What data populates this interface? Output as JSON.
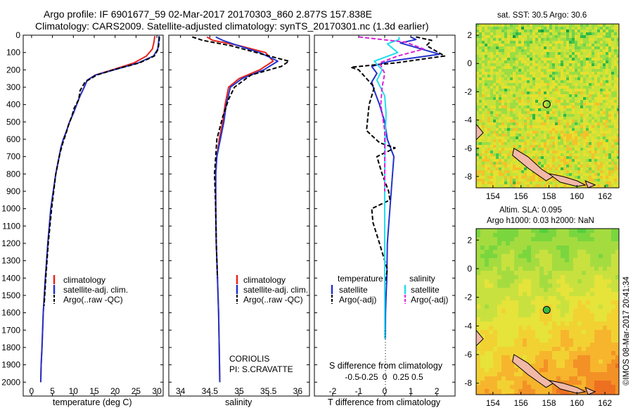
{
  "header": {
    "line1": "Argo profile: IF 6901677_59 02-Mar-2017 20170303_860 2.877S 157.838E",
    "line2": "Climatology: CARS2009. Satellite-adjusted climatology: synTS_20170301.nc (1.3d earlier)"
  },
  "colors": {
    "climatology": "#e8231b",
    "satellite_adj": "#2233cc",
    "argo": "#000000",
    "sal_satellite": "#22ddee",
    "sal_argo": "#dd22dd"
  },
  "legend_profile": {
    "climatology": "climatology",
    "satellite_adj": "satellite-adj. clim.",
    "argo": "Argo(..raw -QC)"
  },
  "legend_diff": {
    "temperature_head": "temperature",
    "salinity_head": "salinity",
    "satellite": "satellite",
    "argo": "Argo(-adj)"
  },
  "annotations": {
    "coriolis": "CORIOLIS",
    "pi": "PI: S.CRAVATTE",
    "sst_title": "sat. SST: 30.5 Argo: 30.6",
    "sla_title1": "Altim. SLA: 0.095",
    "sla_title2": "Argo h1000: 0.03 h2000: NaN",
    "timestamp": "©IMOS 08-Mar-2017 20:41:34"
  },
  "chart_data": [
    {
      "type": "line",
      "name": "temperature-profile",
      "xlabel": "temperature (deg C)",
      "ylabel": "",
      "xlim": [
        -2,
        31.5
      ],
      "ylim": [
        2080,
        0
      ],
      "xticks": [
        0,
        5,
        10,
        15,
        20,
        25,
        30
      ],
      "yticks": [
        0,
        100,
        200,
        300,
        400,
        500,
        600,
        700,
        800,
        900,
        1000,
        1100,
        1200,
        1300,
        1400,
        1500,
        1600,
        1700,
        1800,
        1900,
        2000
      ],
      "series": [
        {
          "name": "climatology",
          "color": "#e8231b",
          "dash": "",
          "x": [
            29.5,
            29.3,
            28.9,
            27.5,
            24.5,
            20.0,
            15.2,
            13.3,
            12.6,
            11.6,
            10.8,
            10.0,
            9.1,
            8.4,
            7.6,
            7.0,
            5.8,
            4.6,
            3.9,
            3.3,
            2.8,
            2.5,
            2.3,
            2.2
          ],
          "y": [
            5,
            40,
            80,
            120,
            160,
            195,
            230,
            260,
            300,
            350,
            400,
            450,
            500,
            550,
            600,
            650,
            800,
            1000,
            1200,
            1400,
            1600,
            1800,
            1900,
            2000
          ]
        },
        {
          "name": "satellite-adj. clim.",
          "color": "#2233cc",
          "dash": "",
          "x": [
            30.5,
            30.4,
            30.2,
            29.2,
            25.5,
            20.5,
            15.3,
            13.3,
            12.6,
            11.6,
            10.8,
            10.0,
            9.1,
            8.4,
            7.6,
            7.0,
            5.8,
            4.6,
            3.9,
            3.3,
            2.8,
            2.5,
            2.3,
            2.2
          ],
          "y": [
            5,
            40,
            80,
            120,
            160,
            195,
            230,
            260,
            300,
            350,
            400,
            450,
            500,
            550,
            600,
            650,
            800,
            1000,
            1200,
            1400,
            1600,
            1800,
            1900,
            2000
          ]
        },
        {
          "name": "Argo(..raw -QC)",
          "color": "#000000",
          "dash": "6,3",
          "x": [
            30.6,
            30.5,
            30.3,
            29.4,
            25.8,
            20.2,
            15.6,
            12.8,
            11.6,
            11.3,
            10.2,
            9.6,
            8.8,
            8.2,
            7.5,
            6.8,
            5.8,
            4.8,
            4.0,
            3.4,
            3.0
          ],
          "y": [
            10,
            40,
            80,
            120,
            160,
            195,
            230,
            270,
            320,
            370,
            420,
            470,
            520,
            570,
            620,
            680,
            800,
            1000,
            1200,
            1400,
            1560
          ]
        }
      ]
    },
    {
      "type": "line",
      "name": "salinity-profile",
      "xlabel": "salinity",
      "xlim": [
        33.8,
        36.2
      ],
      "ylim": [
        2080,
        0
      ],
      "xticks": [
        34,
        34.5,
        35,
        35.5,
        36
      ],
      "series": [
        {
          "name": "climatology",
          "color": "#e8231b",
          "dash": "",
          "x": [
            34.45,
            34.55,
            35.0,
            35.45,
            35.58,
            35.35,
            35.0,
            34.82,
            34.76,
            34.72,
            34.66,
            34.62,
            34.6,
            34.6,
            34.61,
            34.63,
            34.65,
            34.66,
            34.67
          ],
          "y": [
            10,
            30,
            60,
            100,
            150,
            200,
            250,
            300,
            400,
            500,
            600,
            700,
            800,
            1000,
            1200,
            1400,
            1600,
            1800,
            2000
          ]
        },
        {
          "name": "satellite-adj. clim.",
          "color": "#2233cc",
          "dash": "",
          "x": [
            34.6,
            34.72,
            34.98,
            35.35,
            35.66,
            35.42,
            35.05,
            34.85,
            34.78,
            34.74,
            34.68,
            34.62,
            34.6,
            34.6,
            34.61,
            34.63,
            34.65,
            34.66,
            34.67
          ],
          "y": [
            10,
            30,
            60,
            100,
            150,
            200,
            250,
            300,
            400,
            500,
            600,
            700,
            800,
            1000,
            1200,
            1400,
            1600,
            1800,
            2000
          ]
        },
        {
          "name": "Argo(..raw -QC)",
          "color": "#000000",
          "dash": "6,3",
          "x": [
            34.2,
            34.38,
            34.85,
            35.4,
            35.85,
            35.72,
            35.2,
            34.92,
            34.82,
            34.72,
            34.62,
            34.6,
            34.58,
            34.6,
            34.61,
            34.63
          ],
          "y": [
            10,
            30,
            60,
            110,
            150,
            180,
            230,
            300,
            370,
            470,
            600,
            700,
            800,
            1000,
            1200,
            1400
          ]
        }
      ]
    },
    {
      "type": "line",
      "name": "difference-from-climatology",
      "xlabel": "T difference from climatology",
      "xlabel2": "S difference from climatology",
      "xlim": [
        -2.7,
        2.7
      ],
      "ylim": [
        2080,
        0
      ],
      "xticks": [
        -2,
        -1,
        0,
        1,
        2
      ],
      "sticks": [
        "-0.5",
        "-0.25",
        "0",
        "0.25",
        "0.5"
      ],
      "series": [
        {
          "name": "T satellite",
          "color": "#2233cc",
          "dash": "",
          "x": [
            1.0,
            1.2,
            0.6,
            2.1,
            0.2,
            -0.5,
            -0.3,
            -0.5,
            -0.4,
            -0.2,
            0.0,
            0.1,
            0.35,
            0.3,
            0.2,
            0.1,
            0.08,
            0.05,
            0.03,
            0.02
          ],
          "y": [
            10,
            25,
            45,
            110,
            150,
            180,
            220,
            270,
            320,
            400,
            500,
            600,
            700,
            800,
            1000,
            1200,
            1400,
            1500,
            1600,
            1750
          ]
        },
        {
          "name": "T Argo(-adj)",
          "color": "#000000",
          "dash": "6,3",
          "x": [
            1.2,
            1.8,
            1.6,
            2.3,
            0.4,
            -1.3,
            -1.0,
            -0.4,
            -0.6,
            -0.7,
            -0.2,
            0.4,
            -0.3,
            -0.1,
            0.15,
            0.2,
            -0.5,
            -0.45,
            -0.2,
            0.1,
            0.0
          ],
          "y": [
            10,
            30,
            60,
            120,
            160,
            185,
            200,
            300,
            400,
            550,
            620,
            650,
            700,
            800,
            900,
            950,
            1000,
            1080,
            1200,
            1350,
            1440
          ]
        },
        {
          "name": "S satellite",
          "color": "#22ddee",
          "dash": "",
          "x": [
            0.55,
            0.55,
            0.1,
            0.5,
            -0.4,
            -0.1,
            -0.3,
            0.0,
            0.05,
            0.02,
            0.0,
            0.0,
            0.0,
            0.0
          ],
          "y": [
            10,
            25,
            50,
            100,
            150,
            200,
            260,
            350,
            450,
            600,
            800,
            1000,
            1400,
            1750
          ]
        },
        {
          "name": "S Argo(-adj)",
          "color": "#dd22dd",
          "dash": "6,3",
          "x": [
            -1.0,
            0.8,
            1.5,
            0.5,
            -0.2,
            0.0,
            -0.1,
            -0.15,
            0.0,
            0.0,
            0.0
          ],
          "y": [
            10,
            40,
            80,
            120,
            160,
            220,
            300,
            400,
            550,
            700,
            900
          ]
        }
      ]
    },
    {
      "type": "heatmap",
      "name": "sst-map",
      "title": "sat. SST: 30.5 Argo: 30.6",
      "xticks": [
        154,
        156,
        158,
        160,
        162
      ],
      "yticks": [
        2,
        0,
        -2,
        -4,
        -6,
        -8
      ],
      "xlim": [
        152.8,
        163
      ],
      "ylim": [
        -8.8,
        2.8
      ],
      "argo_position": [
        157.84,
        -2.88
      ],
      "argo_marker": "open-circle"
    },
    {
      "type": "heatmap",
      "name": "sla-map",
      "title": "Altim. SLA: 0.095",
      "xticks": [
        154,
        156,
        158,
        160,
        162
      ],
      "yticks": [
        2,
        0,
        -2,
        -4,
        -6,
        -8
      ],
      "xlim": [
        152.8,
        163
      ],
      "ylim": [
        -8.8,
        2.8
      ],
      "argo_position": [
        157.84,
        -2.88
      ],
      "argo_marker": "filled-green-circle"
    }
  ]
}
